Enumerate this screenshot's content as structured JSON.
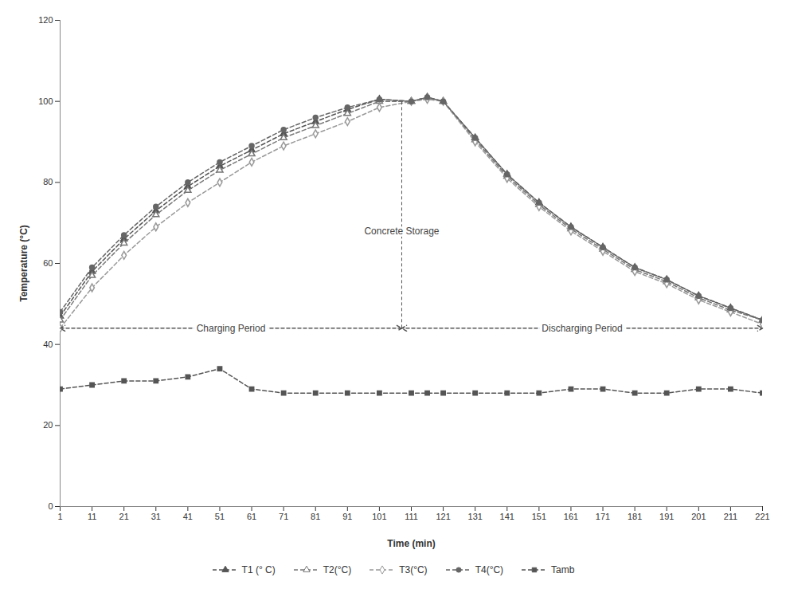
{
  "chart_data": {
    "type": "line",
    "x_label": "Time (min)",
    "y_label": "Temperature (°C)",
    "x": [
      1,
      11,
      21,
      31,
      41,
      51,
      61,
      71,
      81,
      91,
      101,
      111,
      116,
      121,
      131,
      141,
      151,
      161,
      171,
      181,
      191,
      201,
      211,
      221
    ],
    "series": [
      {
        "name": "T1 (° C)",
        "color": "#555555",
        "marker": "triangle",
        "line_style": "dashed",
        "values": [
          47,
          58,
          66,
          73,
          79,
          84,
          88,
          92,
          95,
          98,
          100.5,
          100,
          101,
          100,
          91,
          82,
          75,
          69,
          64,
          59,
          56,
          52,
          49,
          46
        ]
      },
      {
        "name": "T2(°C)",
        "color": "#777777",
        "marker": "open-triangle",
        "line_style": "dashed",
        "values": [
          46,
          57,
          65,
          72,
          78,
          83,
          87,
          91,
          94,
          97,
          100,
          100,
          101,
          100,
          90.5,
          81.5,
          74.5,
          68.5,
          63.5,
          58.5,
          55.5,
          51.5,
          48.5,
          46
        ]
      },
      {
        "name": "T3(°C)",
        "color": "#999999",
        "marker": "open-diamond",
        "line_style": "dashed",
        "values": [
          44,
          54,
          62,
          69,
          75,
          80,
          85,
          89,
          92,
          95,
          98.5,
          100,
          100.5,
          100,
          90,
          81,
          74,
          68,
          63,
          58,
          55,
          51,
          48,
          45
        ]
      },
      {
        "name": "T4(°C)",
        "color": "#666666",
        "marker": "circle",
        "line_style": "dashed",
        "values": [
          48,
          59,
          67,
          74,
          80,
          85,
          89,
          93,
          96,
          98.5,
          100.5,
          100,
          101,
          100,
          91,
          82,
          75,
          69,
          64,
          59,
          56,
          52,
          49,
          46
        ]
      },
      {
        "name": "Tamb",
        "color": "#555555",
        "marker": "square",
        "line_style": "dashed",
        "values": [
          29,
          30,
          31,
          31,
          32,
          34,
          29,
          28,
          28,
          28,
          28,
          28,
          28,
          28,
          28,
          28,
          28,
          29,
          29,
          28,
          28,
          29,
          29,
          28
        ]
      }
    ],
    "xlim": [
      1,
      221
    ],
    "xticks": [
      1,
      11,
      21,
      31,
      41,
      51,
      61,
      71,
      81,
      91,
      101,
      111,
      121,
      131,
      141,
      151,
      161,
      171,
      181,
      191,
      201,
      211,
      221
    ],
    "ylim": [
      0,
      120
    ],
    "yticks": [
      0,
      20,
      40,
      60,
      80,
      100,
      120
    ],
    "grid": false,
    "legend": "bottom",
    "annotations": [
      {
        "text": "Concrete Storage",
        "x": 108,
        "y": 68,
        "y_from": 44,
        "y_to": 100
      }
    ],
    "periods": [
      {
        "text": "Charging Period",
        "start": 1,
        "end": 108,
        "y": 44
      },
      {
        "text": "Discharging Period",
        "start": 108,
        "end": 221,
        "y": 44
      }
    ]
  }
}
